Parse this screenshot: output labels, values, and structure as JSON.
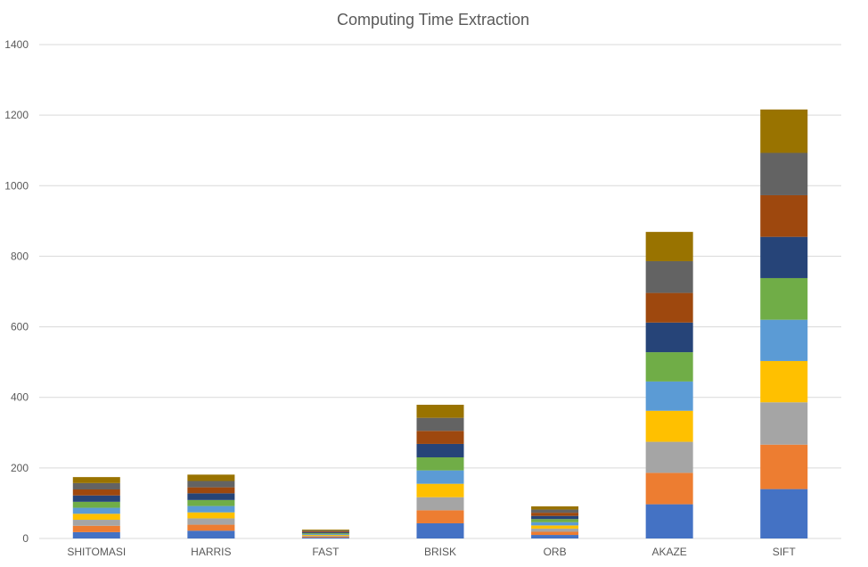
{
  "chart_data": {
    "type": "bar",
    "stacked": true,
    "title": "Computing Time Extraction",
    "xlabel": "",
    "ylabel": "",
    "ylim": [
      0,
      1400
    ],
    "yticks": [
      0,
      200,
      400,
      600,
      800,
      1000,
      1200,
      1400
    ],
    "grid": true,
    "legend": "none",
    "categories": [
      "SHITOMASI",
      "HARRIS",
      "FAST",
      "BRISK",
      "ORB",
      "AKAZE",
      "SIFT"
    ],
    "series_colors": [
      "#4472c4",
      "#ed7d31",
      "#a5a5a5",
      "#ffc000",
      "#5b9bd5",
      "#70ad47",
      "#264478",
      "#9e480e",
      "#636363",
      "#997300"
    ],
    "series": [
      {
        "values": [
          18,
          22,
          2.5,
          43,
          10,
          97,
          140
        ]
      },
      {
        "values": [
          18,
          17,
          2.5,
          37,
          9,
          89,
          126
        ]
      },
      {
        "values": [
          17,
          18,
          2.5,
          37,
          9,
          88,
          120
        ]
      },
      {
        "values": [
          17,
          17,
          2.5,
          38,
          9,
          88,
          117
        ]
      },
      {
        "values": [
          17,
          18,
          2.5,
          38,
          9,
          83,
          117
        ]
      },
      {
        "values": [
          17,
          17,
          2.5,
          37,
          9,
          83,
          118
        ]
      },
      {
        "values": [
          18,
          19,
          2.5,
          38,
          9,
          84,
          117
        ]
      },
      {
        "values": [
          17,
          17,
          2.5,
          37,
          9,
          84,
          118
        ]
      },
      {
        "values": [
          18,
          18,
          2.5,
          37,
          9,
          90,
          120
        ]
      },
      {
        "values": [
          17,
          18,
          2.5,
          37,
          9,
          83,
          123
        ]
      }
    ]
  }
}
